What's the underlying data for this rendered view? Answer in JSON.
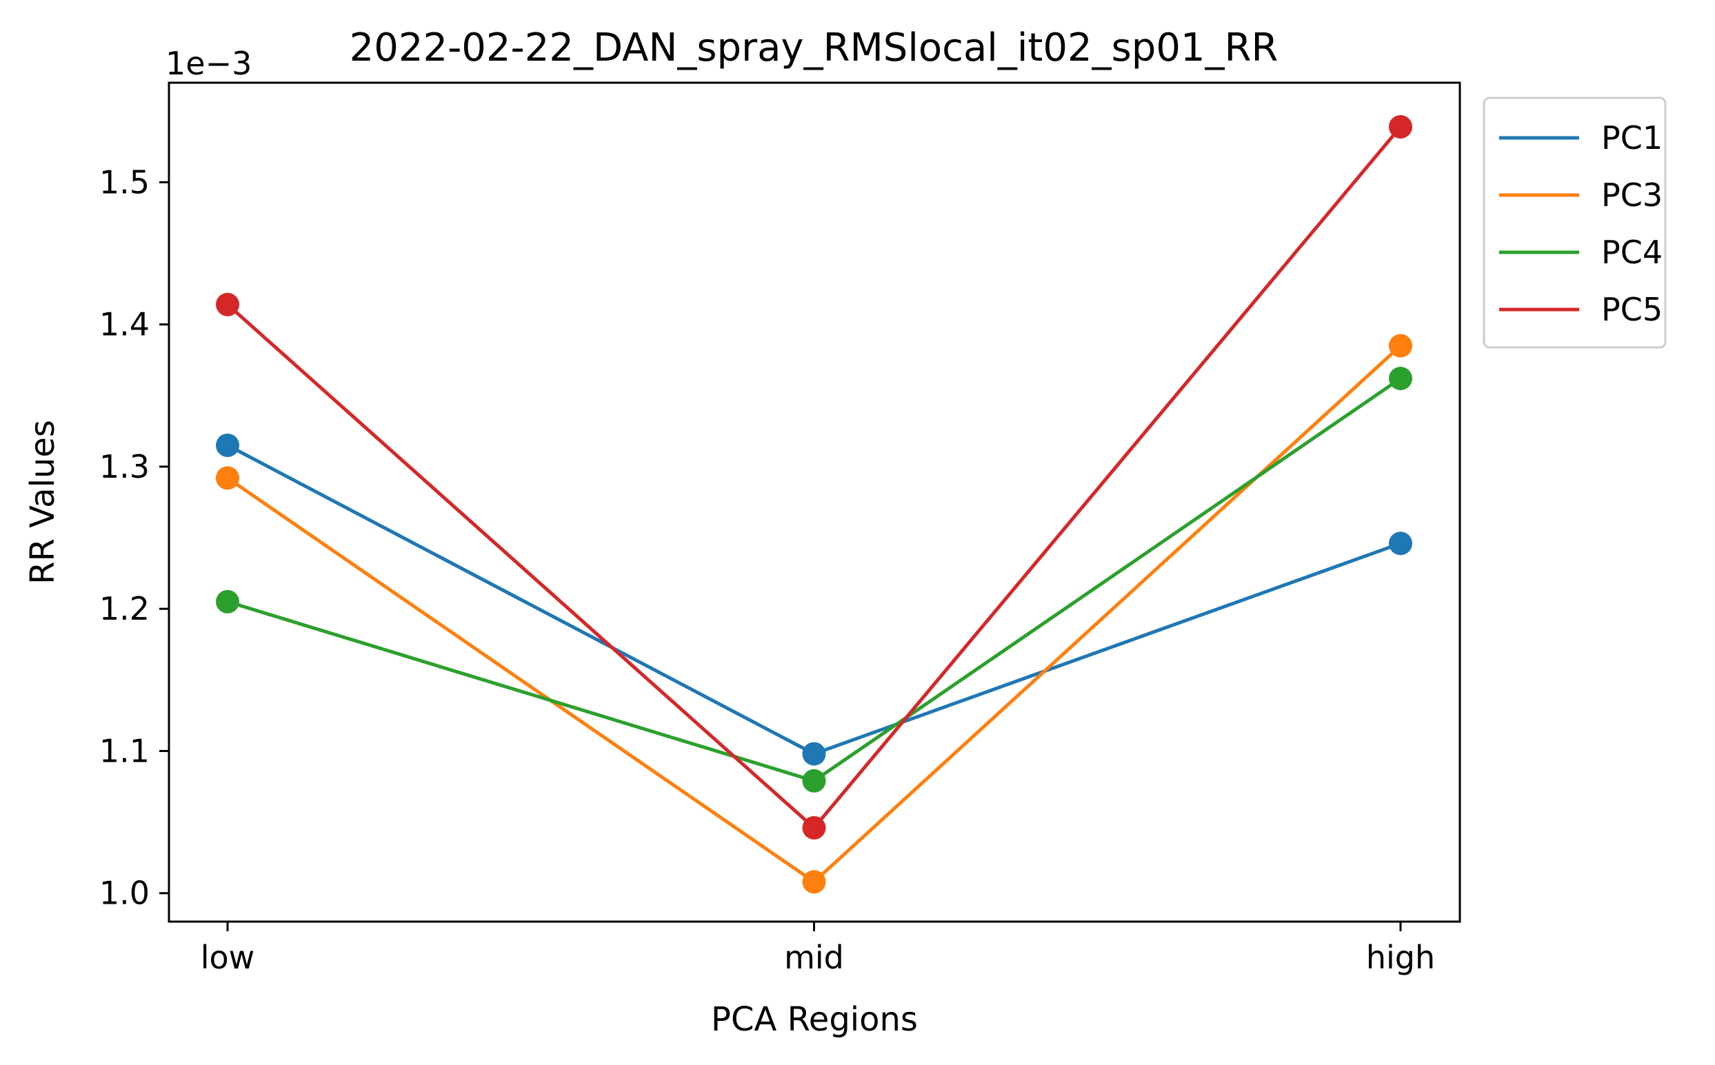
{
  "chart_data": {
    "type": "line",
    "title": "2022-02-22_DAN_spray_RMSlocal_it02_sp01_RR",
    "xlabel": "PCA Regions",
    "ylabel": "RR Values",
    "y_offset_label": "1e−3",
    "categories": [
      "low",
      "mid",
      "high"
    ],
    "ylim": [
      0.00098,
      0.00157
    ],
    "yticks": [
      0.001,
      0.0011,
      0.0012,
      0.0013,
      0.0014,
      0.0015
    ],
    "ytick_labels": [
      "1.0",
      "1.1",
      "1.2",
      "1.3",
      "1.4",
      "1.5"
    ],
    "grid": false,
    "legend_position": "outside-top-right",
    "series": [
      {
        "name": "PC1",
        "color": "#1f77b4",
        "values": [
          0.001315,
          0.001098,
          0.001246
        ]
      },
      {
        "name": "PC3",
        "color": "#ff7f0e",
        "values": [
          0.001292,
          0.001008,
          0.001385
        ]
      },
      {
        "name": "PC4",
        "color": "#2ca02c",
        "values": [
          0.001205,
          0.001079,
          0.001362
        ]
      },
      {
        "name": "PC5",
        "color": "#d62728",
        "values": [
          0.001414,
          0.001046,
          0.001539
        ]
      }
    ]
  }
}
